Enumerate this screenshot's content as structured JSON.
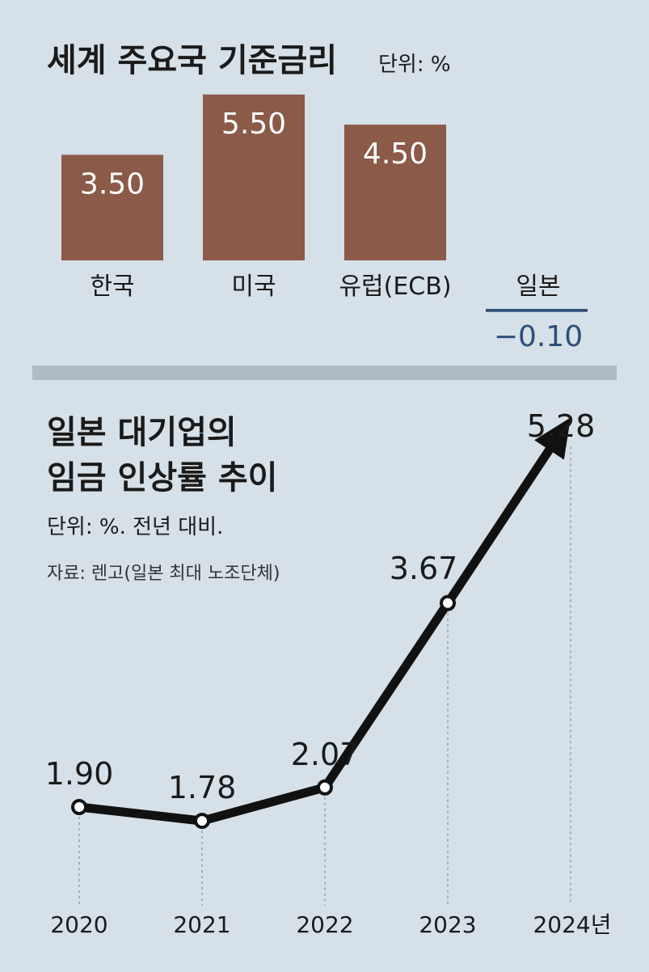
{
  "colors": {
    "background": "#d6e0e8",
    "bar": "#8b5a48",
    "negative": "#2f4f78",
    "line": "#111111",
    "divider": "#aebbc7"
  },
  "top": {
    "title": "세계 주요국 기준금리",
    "unit": "단위: %"
  },
  "bottom": {
    "title_line1": "일본 대기업의",
    "title_line2": "임금 인상률 추이",
    "unit": "단위: %. 전년 대비.",
    "source": "자료: 렌고(일본 최대 노조단체)"
  },
  "chart_data": [
    {
      "type": "bar",
      "title": "세계 주요국 기준금리",
      "unit": "단위: %",
      "categories": [
        "한국",
        "미국",
        "유럽(ECB)",
        "일본"
      ],
      "values": [
        3.5,
        5.5,
        4.5,
        -0.1
      ],
      "value_labels": [
        "3.50",
        "5.50",
        "4.50",
        "−0.10"
      ],
      "grid": false
    },
    {
      "type": "line",
      "title": "일본 대기업의 임금 인상률 추이",
      "unit": "단위: %. 전년 대비.",
      "source": "자료: 렌고(일본 최대 노조단체)",
      "x": [
        "2020",
        "2021",
        "2022",
        "2023",
        "2024년"
      ],
      "values": [
        1.9,
        1.78,
        2.07,
        3.67,
        5.28
      ],
      "value_labels": [
        "1.90",
        "1.78",
        "2.07",
        "3.67",
        "5.28"
      ],
      "grid": false,
      "last_point_arrow": true
    }
  ]
}
